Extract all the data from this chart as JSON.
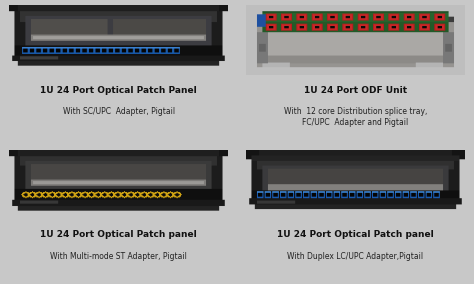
{
  "background_color": "#c8c8c8",
  "panels": [
    {
      "row": 0,
      "col": 0,
      "title": "1U 24 Port Optical Patch Panel",
      "subtitle": "With SC/UPC  Adapter, Pigtail",
      "style": "sc"
    },
    {
      "row": 0,
      "col": 1,
      "title": "1U 24 Port ODF Unit",
      "subtitle": "With  12 core Distribution splice tray,\nFC/UPC  Adapter and Pigtail",
      "style": "odf"
    },
    {
      "row": 1,
      "col": 0,
      "title": "1U 24 Port Optical Patch panel",
      "subtitle": "With Multi-mode ST Adapter, Pigtail",
      "style": "st"
    },
    {
      "row": 1,
      "col": 1,
      "title": "1U 24 Port Optical Patch panel",
      "subtitle": "With Duplex LC/UPC Adapter,Pigtail",
      "style": "lc"
    }
  ],
  "title_fontsize": 6.5,
  "subtitle_fontsize": 5.5
}
